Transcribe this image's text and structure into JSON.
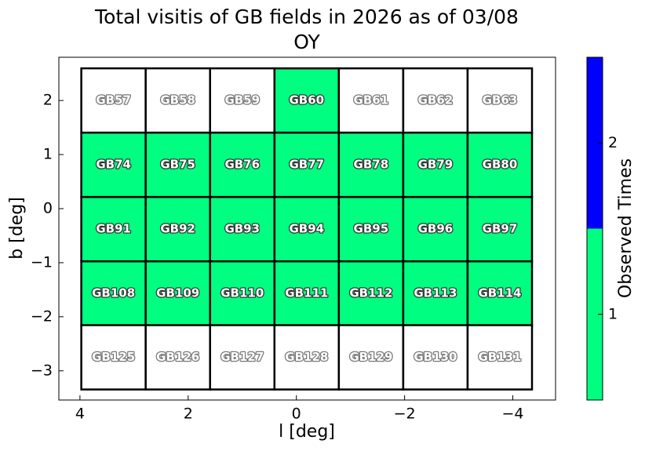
{
  "chart_data": {
    "type": "field-grid",
    "title": "Total visitis of GB fields in 2026 as of 03/08",
    "subtitle": "OY",
    "x_label": "l [deg]",
    "y_label": "b [deg]",
    "xlim": [
      4.39,
      -4.79
    ],
    "ylim": [
      -3.54,
      2.8
    ],
    "xticks": [
      4,
      2,
      0,
      {
        "value": -2,
        "label": "−2"
      },
      {
        "value": -4,
        "label": "−4"
      }
    ],
    "yticks": [
      2,
      1,
      0,
      {
        "value": -1,
        "label": "−1"
      },
      {
        "value": -2,
        "label": "−2"
      },
      {
        "value": -3,
        "label": "−3"
      }
    ],
    "cell_size": 1.19,
    "empty_color": "#ffffff",
    "colorbar": {
      "label": "Observed Times",
      "clim": [
        0.5,
        2.5
      ],
      "ticks": [
        1,
        2
      ],
      "colors": [
        "#00ff80",
        "#0000ff"
      ]
    },
    "fields": [
      {
        "name": "GB57",
        "l": 3.38,
        "b": 2.0,
        "value": 0
      },
      {
        "name": "GB58",
        "l": 2.19,
        "b": 2.0,
        "value": 0
      },
      {
        "name": "GB59",
        "l": 1.0,
        "b": 2.0,
        "value": 0
      },
      {
        "name": "GB60",
        "l": -0.19,
        "b": 2.0,
        "value": 1
      },
      {
        "name": "GB61",
        "l": -1.38,
        "b": 2.0,
        "value": 0
      },
      {
        "name": "GB62",
        "l": -2.57,
        "b": 2.0,
        "value": 0
      },
      {
        "name": "GB63",
        "l": -3.76,
        "b": 2.0,
        "value": 0
      },
      {
        "name": "GB74",
        "l": 3.38,
        "b": 0.81,
        "value": 1
      },
      {
        "name": "GB75",
        "l": 2.19,
        "b": 0.81,
        "value": 1
      },
      {
        "name": "GB76",
        "l": 1.0,
        "b": 0.81,
        "value": 1
      },
      {
        "name": "GB77",
        "l": -0.19,
        "b": 0.81,
        "value": 1
      },
      {
        "name": "GB78",
        "l": -1.38,
        "b": 0.81,
        "value": 1
      },
      {
        "name": "GB79",
        "l": -2.57,
        "b": 0.81,
        "value": 1
      },
      {
        "name": "GB80",
        "l": -3.76,
        "b": 0.81,
        "value": 1
      },
      {
        "name": "GB91",
        "l": 3.38,
        "b": -0.38,
        "value": 1
      },
      {
        "name": "GB92",
        "l": 2.19,
        "b": -0.38,
        "value": 1
      },
      {
        "name": "GB93",
        "l": 1.0,
        "b": -0.38,
        "value": 1
      },
      {
        "name": "GB94",
        "l": -0.19,
        "b": -0.38,
        "value": 1
      },
      {
        "name": "GB95",
        "l": -1.38,
        "b": -0.38,
        "value": 1
      },
      {
        "name": "GB96",
        "l": -2.57,
        "b": -0.38,
        "value": 1
      },
      {
        "name": "GB97",
        "l": -3.76,
        "b": -0.38,
        "value": 1
      },
      {
        "name": "GB108",
        "l": 3.38,
        "b": -1.57,
        "value": 1
      },
      {
        "name": "GB109",
        "l": 2.19,
        "b": -1.57,
        "value": 1
      },
      {
        "name": "GB110",
        "l": 1.0,
        "b": -1.57,
        "value": 1
      },
      {
        "name": "GB111",
        "l": -0.19,
        "b": -1.57,
        "value": 1
      },
      {
        "name": "GB112",
        "l": -1.38,
        "b": -1.57,
        "value": 1
      },
      {
        "name": "GB113",
        "l": -2.57,
        "b": -1.57,
        "value": 1
      },
      {
        "name": "GB114",
        "l": -3.76,
        "b": -1.57,
        "value": 1
      },
      {
        "name": "GB125",
        "l": 3.38,
        "b": -2.75,
        "value": 0
      },
      {
        "name": "GB126",
        "l": 2.19,
        "b": -2.75,
        "value": 0
      },
      {
        "name": "GB127",
        "l": 1.0,
        "b": -2.75,
        "value": 0
      },
      {
        "name": "GB128",
        "l": -0.19,
        "b": -2.75,
        "value": 0
      },
      {
        "name": "GB129",
        "l": -1.38,
        "b": -2.75,
        "value": 0
      },
      {
        "name": "GB130",
        "l": -2.57,
        "b": -2.75,
        "value": 0
      },
      {
        "name": "GB131",
        "l": -3.76,
        "b": -2.75,
        "value": 0
      }
    ]
  }
}
